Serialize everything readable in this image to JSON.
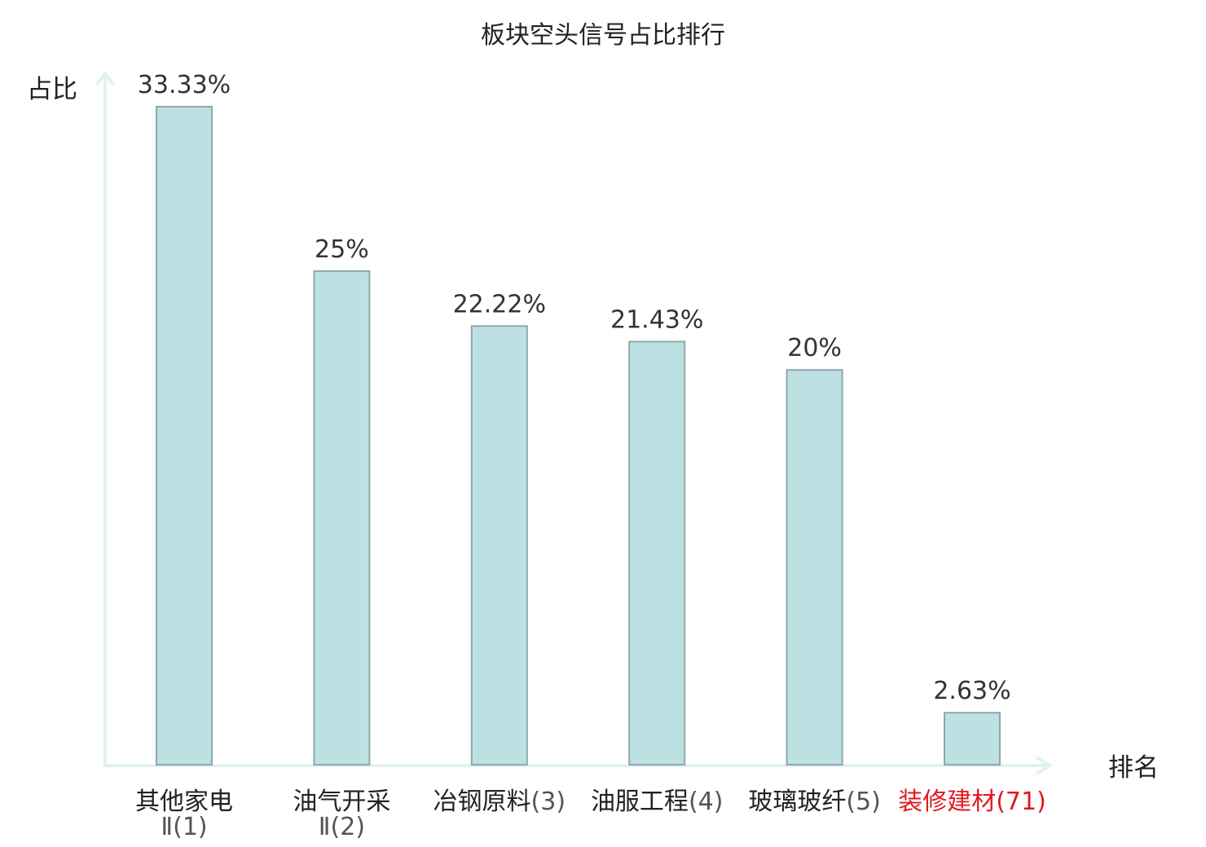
{
  "chart_data": {
    "type": "bar",
    "title": "板块空头信号占比排行",
    "ylabel": "占比",
    "xlabel": "排名",
    "ylim": [
      0,
      35
    ],
    "grid": false,
    "categories": [
      {
        "name": "其他家电",
        "rank": "Ⅱ(1)",
        "highlight": false
      },
      {
        "name": "油气开采",
        "rank": "Ⅱ(2)",
        "highlight": false
      },
      {
        "name": "冶钢原料",
        "rank": "(3)",
        "highlight": false
      },
      {
        "name": "油服工程",
        "rank": "(4)",
        "highlight": false
      },
      {
        "name": "玻璃玻纤",
        "rank": "(5)",
        "highlight": false
      },
      {
        "name": "装修建材",
        "rank": "(71)",
        "highlight": true
      }
    ],
    "values": [
      33.33,
      25,
      22.22,
      21.43,
      20,
      2.63
    ],
    "value_labels": [
      "33.33%",
      "25%",
      "22.22%",
      "21.43%",
      "20%",
      "2.63%"
    ]
  },
  "colors": {
    "bar_fill": "#bde0e3",
    "bar_stroke": "#8fa8ab",
    "axis": "#e1f1ef",
    "text": "#333333",
    "rank_text": "#555555",
    "highlight": "#e0191f"
  }
}
